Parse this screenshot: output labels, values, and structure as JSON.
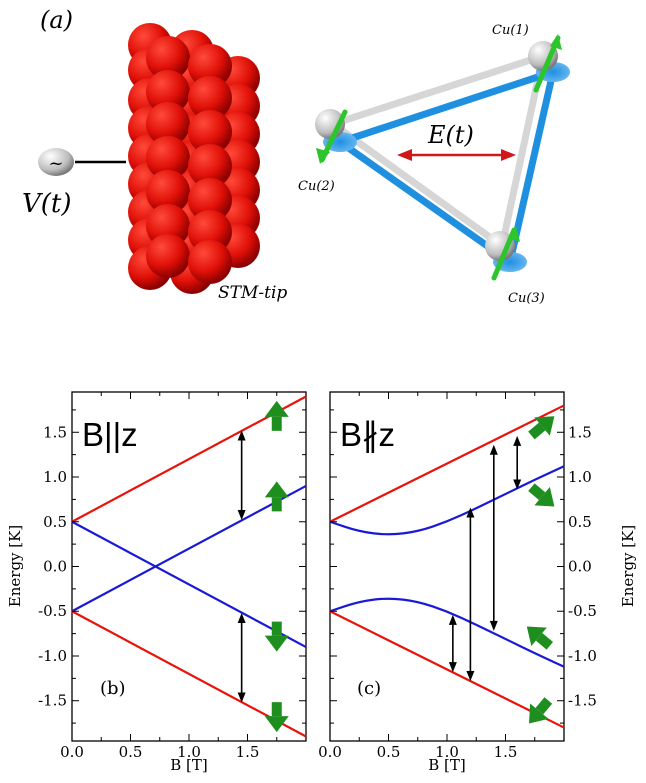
{
  "top_panel": {
    "panel_label": "(a)",
    "voltage_label": "V(t)",
    "source_symbol": "~",
    "tip_label": "STM-tip",
    "field_label": "E(t)",
    "atoms": [
      "Cu(1)",
      "Cu(2)",
      "Cu(3)"
    ]
  },
  "colors": {
    "red": "#e8140c",
    "blue": "#1a1ad6",
    "green": "#1e8f1e",
    "bond_blue": "#1f8fe0",
    "field_arrow": "#d01818"
  },
  "chart_data": [
    {
      "type": "line",
      "panel_label": "(b)",
      "field_label": "B||z",
      "xlabel": "B [T]",
      "ylabel": "Energy [K]",
      "xlim": [
        0,
        2.0
      ],
      "ylim": [
        -1.95,
        1.95
      ],
      "x_ticks": [
        "0.0",
        "0.5",
        "1.0",
        "1.5"
      ],
      "y_ticks": [
        "1.5",
        "1.0",
        "0.5",
        "0.0",
        "-0.5",
        "-1.0",
        "-1.5"
      ],
      "y_axis_side": "left",
      "series": [
        {
          "color": "red",
          "x": [
            0,
            2.0
          ],
          "y": [
            0.5,
            1.9
          ]
        },
        {
          "color": "blue",
          "x": [
            0,
            2.0
          ],
          "y": [
            0.5,
            -0.9
          ]
        },
        {
          "color": "blue",
          "x": [
            0,
            2.0
          ],
          "y": [
            -0.5,
            0.9
          ]
        },
        {
          "color": "red",
          "x": [
            0,
            2.0
          ],
          "y": [
            -0.5,
            -1.9
          ]
        }
      ],
      "transitions": [
        {
          "x": 1.45,
          "y1": 0.52,
          "y2": 1.52
        },
        {
          "x": 1.45,
          "y1": -1.52,
          "y2": -0.52
        }
      ],
      "spin_arrows": [
        {
          "x": 1.75,
          "y": 1.65,
          "dir": "up"
        },
        {
          "x": 1.75,
          "y": 0.75,
          "dir": "up"
        },
        {
          "x": 1.75,
          "y": -0.75,
          "dir": "down"
        },
        {
          "x": 1.75,
          "y": -1.65,
          "dir": "down"
        }
      ]
    },
    {
      "type": "line",
      "panel_label": "(c)",
      "field_label": "B∦z",
      "xlabel": "B [T]",
      "ylabel": "Energy [K]",
      "xlim": [
        0,
        2.0
      ],
      "ylim": [
        -1.95,
        1.95
      ],
      "x_ticks": [
        "0.0",
        "0.5",
        "1.0",
        "1.5"
      ],
      "y_ticks": [
        "1.5",
        "1.0",
        "0.5",
        "0.0",
        "-0.5",
        "-1.0",
        "-1.5"
      ],
      "y_axis_side": "right",
      "series": [
        {
          "color": "red",
          "x": [
            0,
            2.0
          ],
          "y": [
            0.5,
            1.8
          ]
        },
        {
          "color": "blue",
          "x": [
            0,
            0.25,
            0.5,
            0.75,
            1.0,
            1.25,
            1.5,
            1.75,
            2.0
          ],
          "y": [
            0.5,
            0.39,
            0.35,
            0.39,
            0.5,
            0.65,
            0.81,
            0.97,
            1.12
          ]
        },
        {
          "color": "blue",
          "x": [
            0,
            0.25,
            0.5,
            0.75,
            1.0,
            1.25,
            1.5,
            1.75,
            2.0
          ],
          "y": [
            -0.5,
            -0.39,
            -0.35,
            -0.39,
            -0.5,
            -0.65,
            -0.81,
            -0.97,
            -1.12
          ]
        },
        {
          "color": "red",
          "x": [
            0,
            2.0
          ],
          "y": [
            -0.5,
            -1.8
          ]
        }
      ],
      "transitions": [
        {
          "x": 1.05,
          "y1": -1.18,
          "y2": -0.54
        },
        {
          "x": 1.2,
          "y1": -1.28,
          "y2": 0.66
        },
        {
          "x": 1.4,
          "y1": -0.72,
          "y2": 1.36
        },
        {
          "x": 1.6,
          "y1": 0.86,
          "y2": 1.46
        }
      ],
      "spin_arrows": [
        {
          "x": 1.8,
          "y": 1.55,
          "dir": "up-right"
        },
        {
          "x": 1.8,
          "y": 0.8,
          "dir": "down-right"
        },
        {
          "x": 1.8,
          "y": -0.8,
          "dir": "up-left"
        },
        {
          "x": 1.8,
          "y": -1.6,
          "dir": "down-left"
        }
      ]
    }
  ]
}
